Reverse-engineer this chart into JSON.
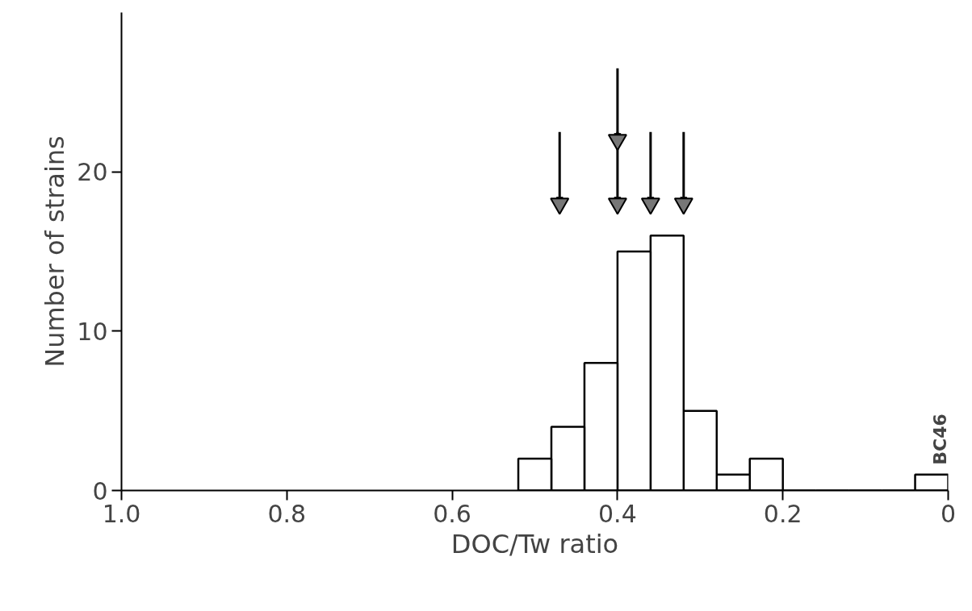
{
  "chart_data": {
    "type": "histogram",
    "xlabel": "DOC/Tw ratio",
    "ylabel": "Number of strains",
    "bins": [
      0,
      0.04,
      0.08,
      0.12,
      0.16,
      0.2,
      0.24,
      0.28,
      0.32,
      0.36,
      0.4,
      0.44,
      0.48,
      0.52
    ],
    "values": [
      1,
      0,
      0,
      0,
      0,
      2,
      1,
      5,
      16,
      15,
      8,
      4,
      2
    ],
    "color": "#000000",
    "series": [
      {
        "type": "scatter",
        "marker": "triangle",
        "color": "#000000",
        "x": [
          0.47,
          0.4,
          0.4,
          0.36,
          0.32
        ],
        "values": [
          18,
          22,
          18,
          18,
          18
        ]
      }
    ],
    "xlim": [
      1.0,
      0
    ],
    "xticks": [
      {
        "value": 1.0,
        "label": "1.0"
      },
      0.8,
      0.6,
      0.4,
      0.2,
      0
    ],
    "ylim": [
      0,
      30
    ],
    "yticks": [
      0,
      10,
      20
    ],
    "grid": false,
    "annotations": [
      {
        "text": "BC46",
        "x": 0.02,
        "y": 1
      }
    ]
  }
}
